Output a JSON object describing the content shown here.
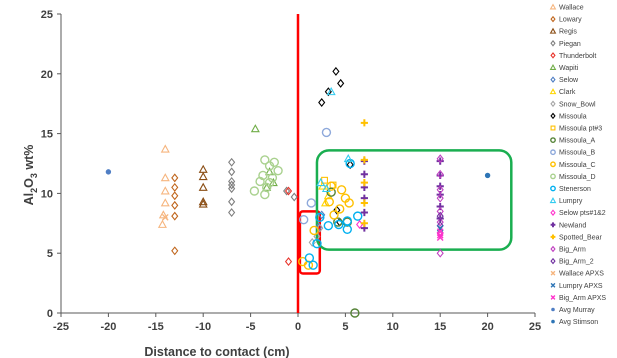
{
  "chart_data": {
    "type": "scatter",
    "title": "",
    "xlabel": "Distance to contact (cm)",
    "ylabel": {
      "main": "Al",
      "sub1": "2",
      "mid": "O",
      "sub2": "3",
      "tail": " wt%"
    },
    "xlim": [
      -25,
      25
    ],
    "ylim": [
      0,
      25
    ],
    "xticks": [
      "-25",
      "-20",
      "-15",
      "-10",
      "-5",
      "0",
      "5",
      "10",
      "15",
      "20",
      "25"
    ],
    "yticks": [
      "0",
      "5",
      "10",
      "15",
      "20",
      "25"
    ],
    "grid": false,
    "legend_position": "right",
    "contact_line": {
      "x": 0,
      "color": "#ff0000"
    },
    "annotations": [
      {
        "type": "rect",
        "color": "#ff0000",
        "x0": 0.2,
        "x1": 2.3,
        "y0": 3.3,
        "y1": 8.5
      },
      {
        "type": "rect",
        "color": "#1aae50",
        "x0": 2.0,
        "x1": 22.5,
        "y0": 5.3,
        "y1": 13.6
      }
    ],
    "series": [
      {
        "name": "Wallace",
        "marker": "triangle",
        "color": "#f6b57e",
        "points": [
          [
            -14,
            13.7
          ],
          [
            -14,
            11.3
          ],
          [
            -14,
            10.2
          ],
          [
            -14,
            9.2
          ],
          [
            -14.2,
            8.2
          ],
          [
            -14.3,
            7.4
          ]
        ]
      },
      {
        "name": "Lowary",
        "marker": "diamond",
        "color": "#c0661d",
        "points": [
          [
            -13,
            11.3
          ],
          [
            -13,
            10.5
          ],
          [
            -13,
            9.8
          ],
          [
            -13,
            9
          ],
          [
            -13,
            8.1
          ],
          [
            -13,
            5.2
          ]
        ]
      },
      {
        "name": "Regis",
        "marker": "triangle",
        "color": "#8a4d14",
        "points": [
          [
            -10,
            12
          ],
          [
            -10,
            11.4
          ],
          [
            -10,
            10.5
          ],
          [
            -10,
            9.3
          ],
          [
            -10,
            9.1
          ]
        ]
      },
      {
        "name": "Piegan",
        "marker": "diamond",
        "color": "#7f7f7f",
        "points": [
          [
            -7,
            12.6
          ],
          [
            -7,
            11.8
          ],
          [
            -7,
            11
          ],
          [
            -7,
            10.7
          ],
          [
            -7,
            10.4
          ],
          [
            -7,
            9.3
          ],
          [
            -7,
            8.4
          ],
          [
            -1.2,
            10.2
          ],
          [
            -0.4,
            9.7
          ]
        ]
      },
      {
        "name": "Thunderbolt",
        "marker": "diamond",
        "color": "#e8342b",
        "points": [
          [
            -1,
            10.2
          ],
          [
            -1,
            4.3
          ]
        ]
      },
      {
        "name": "Wapiti",
        "marker": "triangle",
        "color": "#70ad47",
        "points": [
          [
            -4.5,
            15.4
          ],
          [
            -3,
            11.8
          ],
          [
            -2.6,
            10.9
          ],
          [
            -3.3,
            10.5
          ]
        ]
      },
      {
        "name": "Selow",
        "marker": "diamond",
        "color": "#4f7ec4",
        "points": [
          [
            2.5,
            8.2
          ],
          [
            2.2,
            7.2
          ]
        ]
      },
      {
        "name": "Clark",
        "marker": "triangle",
        "color": "#ffd700",
        "points": [
          [
            2.6,
            10.6
          ],
          [
            3.2,
            9.8
          ],
          [
            2.9,
            9.2
          ]
        ]
      },
      {
        "name": "Snow_Bowl",
        "marker": "diamond",
        "color": "#a5a5a5",
        "points": [
          [
            2.0,
            6.4
          ],
          [
            2.3,
            7.1
          ],
          [
            1.5,
            5.9
          ]
        ]
      },
      {
        "name": "Missoula",
        "marker": "diamond",
        "color": "#000000",
        "points": [
          [
            4,
            20.2
          ],
          [
            4.5,
            19.2
          ],
          [
            3.2,
            18.5
          ],
          [
            2.5,
            17.6
          ],
          [
            5.5,
            12.4
          ],
          [
            4.4,
            7.6
          ],
          [
            4.1,
            8.6
          ]
        ]
      },
      {
        "name": "Missoula pt#3",
        "marker": "square",
        "color": "#ffc000",
        "points": [
          [
            2.8,
            11.1
          ],
          [
            3.7,
            10.7
          ]
        ]
      },
      {
        "name": "Missoula_A",
        "marker": "circle",
        "color": "#548235",
        "points": [
          [
            6,
            0
          ],
          [
            5.2,
            7.6
          ],
          [
            4.2,
            7.6
          ],
          [
            3.5,
            10.1
          ]
        ]
      },
      {
        "name": "Missoula_B",
        "marker": "circle",
        "color": "#8ea9db",
        "points": [
          [
            3,
            15.1
          ],
          [
            1.4,
            9.2
          ],
          [
            0.6,
            7.8
          ]
        ]
      },
      {
        "name": "Missoula_C",
        "marker": "circle",
        "color": "#ffc000",
        "points": [
          [
            0.5,
            4.3
          ],
          [
            1.1,
            4.0
          ],
          [
            1.7,
            6.9
          ],
          [
            3.5,
            10.6
          ],
          [
            4.6,
            10.3
          ],
          [
            5.0,
            9.6
          ],
          [
            3.3,
            9.3
          ],
          [
            5.4,
            9.2
          ],
          [
            4.4,
            8.7
          ],
          [
            3.8,
            8.2
          ]
        ]
      },
      {
        "name": "Missoula_D",
        "marker": "circle",
        "color": "#a9d18e",
        "points": [
          [
            -2.5,
            12.6
          ],
          [
            -3.5,
            12.8
          ],
          [
            -3.0,
            12.3
          ],
          [
            -2.1,
            11.9
          ],
          [
            -3.7,
            11.5
          ],
          [
            -2.7,
            11.3
          ],
          [
            -4.0,
            11.0
          ],
          [
            -3.0,
            10.9
          ],
          [
            -4.6,
            10.2
          ],
          [
            -3.5,
            9.9
          ],
          [
            -3.3,
            10.5
          ]
        ]
      },
      {
        "name": "Stenerson",
        "marker": "circle",
        "color": "#00b0f0",
        "points": [
          [
            1.6,
            4.0
          ],
          [
            1.2,
            4.6
          ],
          [
            2.0,
            5.8
          ],
          [
            2.3,
            8.0
          ],
          [
            5.5,
            12.5
          ],
          [
            6.3,
            8.1
          ],
          [
            5.2,
            7.7
          ],
          [
            4.3,
            7.4
          ],
          [
            3.2,
            7.3
          ],
          [
            5.2,
            7.0
          ]
        ]
      },
      {
        "name": "Lumpry",
        "marker": "triangle",
        "color": "#33ccf0",
        "points": [
          [
            3.5,
            18.5
          ],
          [
            5.3,
            12.9
          ],
          [
            2.4,
            10.9
          ],
          [
            3.0,
            10.4
          ]
        ]
      },
      {
        "name": "Selow pts#1&2",
        "marker": "diamond",
        "color": "#ff33cc",
        "points": [
          [
            6.5,
            7.4
          ]
        ]
      },
      {
        "name": "Newland",
        "marker": "plus",
        "color": "#7030a0",
        "points": [
          [
            7,
            12.7
          ],
          [
            7,
            11.6
          ],
          [
            7,
            10.5
          ],
          [
            7,
            9.6
          ],
          [
            7,
            8.4
          ],
          [
            7,
            7.1
          ],
          [
            15,
            12.7
          ],
          [
            15,
            11.5
          ],
          [
            15,
            10.6
          ],
          [
            15,
            9.9
          ],
          [
            15,
            8.9
          ],
          [
            15,
            7.9
          ]
        ]
      },
      {
        "name": "Spotted_Bear",
        "marker": "plus",
        "color": "#ffc000",
        "points": [
          [
            7,
            15.9
          ],
          [
            7,
            12.8
          ],
          [
            7,
            10.9
          ],
          [
            7,
            9.2
          ],
          [
            7,
            7.5
          ]
        ]
      },
      {
        "name": "Big_Arm",
        "marker": "diamond",
        "color": "#c03fc0",
        "points": [
          [
            15,
            12.9
          ],
          [
            15,
            11.6
          ],
          [
            15,
            10.3
          ],
          [
            15,
            9.6
          ],
          [
            15,
            8.5
          ],
          [
            15,
            7.6
          ],
          [
            15,
            6.7
          ],
          [
            15,
            5.0
          ]
        ]
      },
      {
        "name": "Big_Arm_2",
        "marker": "diamond",
        "color": "#7030a0",
        "points": [
          [
            15,
            8.1
          ],
          [
            15,
            7.3
          ]
        ]
      },
      {
        "name": "Wallace APXS",
        "marker": "x",
        "color": "#f6b57e",
        "points": [
          [
            -14,
            8.0
          ]
        ]
      },
      {
        "name": "Lumpry APXS",
        "marker": "x",
        "color": "#2e75b6",
        "points": [
          [
            15,
            7.1
          ]
        ]
      },
      {
        "name": "Big_Arm APXS",
        "marker": "x",
        "color": "#ff33cc",
        "points": [
          [
            15,
            6.8
          ],
          [
            15,
            6.5
          ],
          [
            15,
            6.3
          ]
        ]
      },
      {
        "name": "Avg Murray",
        "marker": "dot",
        "color": "#4f7ec4",
        "points": [
          [
            -20,
            11.8
          ]
        ]
      },
      {
        "name": "Avg Stimson",
        "marker": "dot",
        "color": "#2e75b6",
        "points": [
          [
            20,
            11.5
          ]
        ]
      }
    ]
  }
}
